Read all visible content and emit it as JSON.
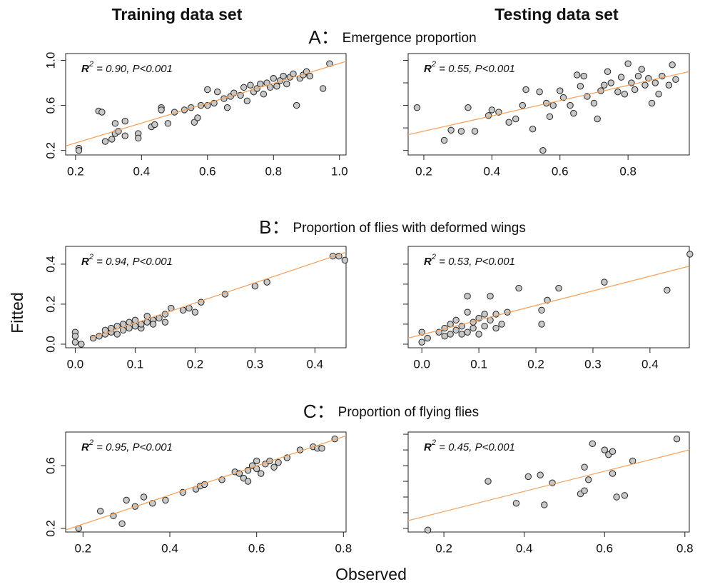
{
  "headers": [
    "Training data set",
    "Testing data set"
  ],
  "rows": [
    {
      "letter": "A：",
      "text": "Emergence proportion"
    },
    {
      "letter": "B：",
      "text": "Proportion of flies with deformed wings"
    },
    {
      "letter": "C：",
      "text": "Proportion of flying flies"
    }
  ],
  "ylabel": "Fitted",
  "xlabel": "Observed",
  "chart_data": [
    {
      "type": "scatter",
      "xlim": [
        0.17,
        1.02
      ],
      "ylim": [
        0.16,
        1.06
      ],
      "xticks": [
        0.2,
        0.4,
        0.6,
        0.8,
        {
          "value": 1,
          "label": "1.0"
        }
      ],
      "yticks": [
        0.2,
        0.6,
        {
          "value": 1,
          "label": "1.0"
        }
      ],
      "ytick_labels": true,
      "annotation": {
        "symbol": "R",
        "superscript": "2",
        "text": " = 0.90, P<0.001"
      },
      "marker_fill": "#c8c8c8",
      "line_color": "#f4a460",
      "fit_line": {
        "x": [
          0.17,
          1.02
        ],
        "y": [
          0.24,
          0.99
        ]
      },
      "x": [
        0.21,
        0.21,
        0.27,
        0.28,
        0.29,
        0.31,
        0.32,
        0.32,
        0.33,
        0.35,
        0.35,
        0.39,
        0.39,
        0.43,
        0.44,
        0.46,
        0.46,
        0.48,
        0.5,
        0.53,
        0.55,
        0.56,
        0.57,
        0.58,
        0.6,
        0.6,
        0.62,
        0.63,
        0.65,
        0.66,
        0.67,
        0.68,
        0.7,
        0.71,
        0.72,
        0.73,
        0.74,
        0.75,
        0.76,
        0.77,
        0.78,
        0.79,
        0.8,
        0.81,
        0.82,
        0.83,
        0.84,
        0.85,
        0.86,
        0.87,
        0.88,
        0.89,
        0.9,
        0.91,
        0.95,
        0.97
      ],
      "y": [
        0.22,
        0.2,
        0.55,
        0.54,
        0.28,
        0.3,
        0.35,
        0.44,
        0.37,
        0.46,
        0.33,
        0.35,
        0.31,
        0.41,
        0.43,
        0.58,
        0.56,
        0.44,
        0.54,
        0.56,
        0.58,
        0.45,
        0.49,
        0.6,
        0.6,
        0.74,
        0.62,
        0.72,
        0.66,
        0.58,
        0.68,
        0.71,
        0.69,
        0.76,
        0.64,
        0.78,
        0.72,
        0.75,
        0.79,
        0.7,
        0.8,
        0.76,
        0.84,
        0.77,
        0.82,
        0.86,
        0.79,
        0.85,
        0.88,
        0.6,
        0.84,
        0.87,
        0.9,
        0.86,
        0.75,
        0.97
      ]
    },
    {
      "type": "scatter",
      "xlim": [
        0.154,
        0.98
      ],
      "ylim": [
        0.16,
        1.06
      ],
      "xticks": [
        0.2,
        0.4,
        0.6,
        0.8
      ],
      "yticks": [
        0.2,
        0.4,
        0.6,
        0.8,
        1
      ],
      "ytick_labels": false,
      "annotation": {
        "symbol": "R",
        "superscript": "2",
        "text": " = 0.55, P<0.001"
      },
      "marker_fill": "#c8c8c8",
      "line_color": "#f4a460",
      "fit_line": {
        "x": [
          0.154,
          0.98
        ],
        "y": [
          0.34,
          0.9
        ]
      },
      "x": [
        0.18,
        0.26,
        0.28,
        0.31,
        0.33,
        0.35,
        0.39,
        0.4,
        0.42,
        0.45,
        0.47,
        0.49,
        0.5,
        0.52,
        0.54,
        0.55,
        0.56,
        0.57,
        0.58,
        0.6,
        0.61,
        0.63,
        0.64,
        0.65,
        0.66,
        0.67,
        0.68,
        0.7,
        0.71,
        0.72,
        0.73,
        0.74,
        0.75,
        0.77,
        0.78,
        0.79,
        0.8,
        0.81,
        0.82,
        0.83,
        0.84,
        0.85,
        0.86,
        0.87,
        0.88,
        0.89,
        0.9,
        0.92,
        0.93,
        0.94
      ],
      "y": [
        0.58,
        0.29,
        0.38,
        0.37,
        0.58,
        0.37,
        0.51,
        0.56,
        0.54,
        0.45,
        0.48,
        0.6,
        0.74,
        0.39,
        0.72,
        0.2,
        0.62,
        0.5,
        0.6,
        0.73,
        0.67,
        0.6,
        0.53,
        0.87,
        0.77,
        0.86,
        0.68,
        0.62,
        0.48,
        0.73,
        0.78,
        0.9,
        0.8,
        0.72,
        0.85,
        0.7,
        0.97,
        0.8,
        0.74,
        0.86,
        0.92,
        0.78,
        0.84,
        0.62,
        0.8,
        0.7,
        0.86,
        0.78,
        0.96,
        0.83
      ]
    },
    {
      "type": "scatter",
      "xlim": [
        -0.016,
        0.452
      ],
      "ylim": [
        -0.018,
        0.489
      ],
      "xticks": [
        {
          "value": 0,
          "label": "0.0"
        },
        0.1,
        0.2,
        0.3,
        0.4
      ],
      "yticks": [
        {
          "value": 0,
          "label": "0.0"
        },
        0.2,
        0.4
      ],
      "ytick_labels": true,
      "annotation": {
        "symbol": "R",
        "superscript": "2",
        "text": " = 0.94, P<0.001"
      },
      "marker_fill": "#c8c8c8",
      "line_color": "#f4a460",
      "fit_line": {
        "x": [
          0.025,
          0.452
        ],
        "y": [
          0.03,
          0.46
        ]
      },
      "x": [
        0,
        0,
        0,
        0.01,
        0.03,
        0.04,
        0.05,
        0.05,
        0.06,
        0.06,
        0.07,
        0.07,
        0.08,
        0.08,
        0.09,
        0.09,
        0.1,
        0.1,
        0.11,
        0.11,
        0.12,
        0.12,
        0.13,
        0.13,
        0.14,
        0.15,
        0.15,
        0.16,
        0.18,
        0.19,
        0.2,
        0.21,
        0.25,
        0.3,
        0.32,
        0.43,
        0.44,
        0.45
      ],
      "y": [
        0.01,
        0.06,
        0.04,
        0,
        0.03,
        0.04,
        0.05,
        0.07,
        0.06,
        0.08,
        0.05,
        0.09,
        0.07,
        0.1,
        0.08,
        0.11,
        0.09,
        0.12,
        0.08,
        0.1,
        0.11,
        0.14,
        0.12,
        0.1,
        0.13,
        0.15,
        0.11,
        0.18,
        0.17,
        0.18,
        0.16,
        0.21,
        0.25,
        0.29,
        0.31,
        0.44,
        0.44,
        0.42
      ]
    },
    {
      "type": "scatter",
      "xlim": [
        -0.024,
        0.469
      ],
      "ylim": [
        -0.018,
        0.489
      ],
      "xticks": [
        {
          "value": 0,
          "label": "0.0"
        },
        0.1,
        0.2,
        0.3,
        0.4
      ],
      "yticks": [
        0,
        0.1,
        0.2,
        0.3,
        0.4
      ],
      "ytick_labels": false,
      "annotation": {
        "symbol": "R",
        "superscript": "2",
        "text": " = 0.53, P<0.001"
      },
      "marker_fill": "#c8c8c8",
      "line_color": "#f4a460",
      "fit_line": {
        "x": [
          -0.024,
          0.469
        ],
        "y": [
          0.03,
          0.39
        ]
      },
      "x": [
        0,
        0,
        0.01,
        0.03,
        0.04,
        0.04,
        0.05,
        0.05,
        0.06,
        0.06,
        0.07,
        0.07,
        0.08,
        0.08,
        0.08,
        0.09,
        0.09,
        0.1,
        0.1,
        0.11,
        0.11,
        0.12,
        0.12,
        0.13,
        0.13,
        0.14,
        0.15,
        0.17,
        0.21,
        0.21,
        0.22,
        0.24,
        0.32,
        0.43,
        0.47
      ],
      "y": [
        0.01,
        0.06,
        0.03,
        0.06,
        0.04,
        0.08,
        0.05,
        0.1,
        0.07,
        0.12,
        0.05,
        0.09,
        0.16,
        0.24,
        0.06,
        0.11,
        0.08,
        0.13,
        0.05,
        0.15,
        0.09,
        0.12,
        0.24,
        0.15,
        0.08,
        0.1,
        0.16,
        0.28,
        0.1,
        0.17,
        0.22,
        0.28,
        0.31,
        0.27,
        0.45
      ]
    },
    {
      "type": "scatter",
      "xlim": [
        0.16,
        0.806
      ],
      "ylim": [
        0.177,
        0.814
      ],
      "xticks": [
        0.2,
        0.4,
        0.6,
        0.8
      ],
      "yticks": [
        0.2,
        0.6
      ],
      "ytick_labels": true,
      "annotation": {
        "symbol": "R",
        "superscript": "2",
        "text": " = 0.95, P<0.001"
      },
      "marker_fill": "#c8c8c8",
      "line_color": "#f4a460",
      "fit_line": {
        "x": [
          0.16,
          0.806
        ],
        "y": [
          0.19,
          0.79
        ]
      },
      "x": [
        0.19,
        0.24,
        0.27,
        0.29,
        0.3,
        0.32,
        0.34,
        0.36,
        0.39,
        0.43,
        0.46,
        0.47,
        0.48,
        0.52,
        0.55,
        0.56,
        0.57,
        0.58,
        0.58,
        0.59,
        0.6,
        0.6,
        0.61,
        0.62,
        0.63,
        0.64,
        0.65,
        0.67,
        0.7,
        0.73,
        0.74,
        0.75,
        0.78
      ],
      "y": [
        0.2,
        0.31,
        0.28,
        0.23,
        0.38,
        0.34,
        0.4,
        0.36,
        0.38,
        0.43,
        0.45,
        0.47,
        0.48,
        0.51,
        0.56,
        0.55,
        0.52,
        0.5,
        0.57,
        0.6,
        0.58,
        0.63,
        0.55,
        0.61,
        0.63,
        0.59,
        0.62,
        0.65,
        0.7,
        0.72,
        0.71,
        0.71,
        0.77
      ]
    },
    {
      "type": "scatter",
      "xlim": [
        0.111,
        0.811
      ],
      "ylim": [
        0.177,
        0.814
      ],
      "xticks": [
        0.2,
        0.4,
        0.6,
        0.8
      ],
      "yticks": [
        0.2,
        0.3,
        0.4,
        0.5,
        0.6,
        0.7,
        0.8
      ],
      "ytick_labels": false,
      "annotation": {
        "symbol": "R",
        "superscript": "2",
        "text": " = 0.45, P<0.001"
      },
      "marker_fill": "#c8c8c8",
      "line_color": "#f4a460",
      "fit_line": {
        "x": [
          0.111,
          0.811
        ],
        "y": [
          0.25,
          0.7
        ]
      },
      "x": [
        0.16,
        0.31,
        0.38,
        0.41,
        0.44,
        0.45,
        0.47,
        0.54,
        0.55,
        0.55,
        0.56,
        0.57,
        0.6,
        0.61,
        0.62,
        0.62,
        0.63,
        0.65,
        0.67,
        0.78
      ],
      "y": [
        0.19,
        0.5,
        0.36,
        0.53,
        0.54,
        0.35,
        0.49,
        0.42,
        0.44,
        0.59,
        0.51,
        0.74,
        0.7,
        0.67,
        0.69,
        0.55,
        0.4,
        0.41,
        0.63,
        0.77
      ]
    }
  ]
}
